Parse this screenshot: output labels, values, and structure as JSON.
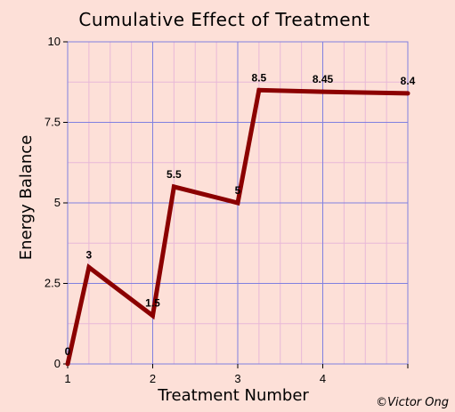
{
  "chart_data": {
    "type": "line",
    "title": "Cumulative Effect of Treatment",
    "xlabel": "Treatment Number",
    "ylabel": "Energy Balance",
    "xlim": [
      1,
      5
    ],
    "ylim": [
      0,
      10
    ],
    "x_major_ticks": [
      1,
      2,
      3,
      4
    ],
    "y_ticks": [
      0,
      2.5,
      5,
      7.5,
      10
    ],
    "y_tick_labels": [
      "0",
      "2.5",
      "5",
      "7.5",
      "10"
    ],
    "x_minor_gridlines": [
      1.25,
      1.5,
      1.75,
      2.25,
      2.5,
      2.75,
      3.25,
      3.5,
      3.75,
      4.25,
      4.5,
      4.75
    ],
    "y_minor_gridlines": [
      1.25,
      3.75,
      6.25,
      8.75
    ],
    "grid": true,
    "series": [
      {
        "x": [
          1,
          1.25,
          2,
          2.25,
          3,
          3.25,
          4,
          5
        ],
        "values": [
          0,
          3,
          1.5,
          5.5,
          5,
          8.5,
          8.45,
          8.4
        ],
        "labels": [
          "0",
          "3",
          "1.5",
          "5.5",
          "5",
          "8.5",
          "8.45",
          "8.4"
        ],
        "color": "#8b0000"
      }
    ],
    "colors": {
      "background": "#fde0d8",
      "major_grid": "#8080e0",
      "minor_grid": "#e8b8d8",
      "line": "#8b0000"
    }
  },
  "footer": {
    "copyright": "©Victor Ong"
  }
}
